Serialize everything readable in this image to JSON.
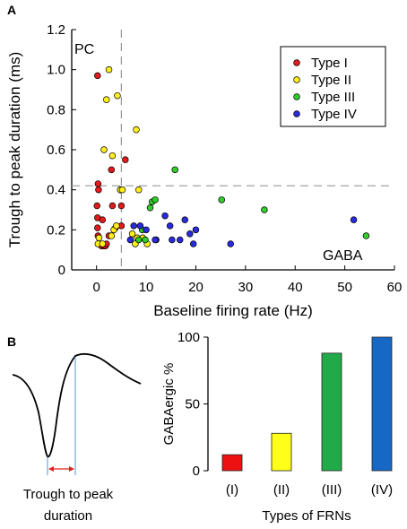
{
  "figure": {
    "panel_a_label": "A",
    "panel_b_label": "B",
    "waveform_caption_line1": "Trough to peak",
    "waveform_caption_line2": "duration"
  },
  "chart_data": [
    {
      "type": "scatter",
      "title": "",
      "xlabel": "Baseline firing rate (Hz)",
      "ylabel": "Trough to peak duration (ms)",
      "xlim": [
        -5,
        60
      ],
      "ylim": [
        0,
        1.2
      ],
      "xticks": [
        0,
        10,
        20,
        30,
        40,
        50,
        60
      ],
      "yticks": [
        0,
        0.2,
        0.4,
        0.6,
        0.8,
        1.0,
        1.2
      ],
      "ytick_labels": [
        "0",
        "0.2",
        "0.4",
        "0.6",
        "0.8",
        "1.0",
        "1.2"
      ],
      "grid": false,
      "legend_position": "top-right",
      "annotations": [
        "PC",
        "GABA"
      ],
      "thresholds": {
        "x": 5,
        "y": 0.42
      },
      "series": [
        {
          "name": "Type I",
          "color": "#e41a1c",
          "x": [
            0.2,
            0.3,
            0.4,
            0.1,
            0.2,
            0.2,
            0.3,
            1.0,
            1.2,
            1.5,
            1.8,
            2.0,
            2.5,
            3.0,
            3.2,
            3.8,
            4.8,
            5.0,
            5.0,
            5.8
          ],
          "y": [
            0.97,
            0.43,
            0.4,
            0.32,
            0.26,
            0.21,
            0.17,
            0.12,
            0.25,
            0.12,
            0.12,
            0.13,
            0.17,
            0.5,
            0.32,
            0.21,
            0.4,
            0.32,
            0.22,
            0.55
          ]
        },
        {
          "name": "Type II",
          "color": "#ffef1a",
          "x": [
            0.3,
            1.5,
            2.0,
            2.5,
            3.2,
            4.2,
            4.8,
            5.2,
            3.5,
            4.0,
            8.0,
            8.5,
            3.0,
            1.2,
            0.5,
            7.8,
            8.2,
            7.2,
            10.2,
            9.3
          ],
          "y": [
            0.13,
            0.6,
            0.85,
            1.0,
            0.57,
            0.87,
            0.4,
            0.4,
            0.2,
            0.22,
            0.7,
            0.4,
            0.17,
            0.13,
            0.16,
            0.13,
            0.16,
            0.18,
            0.13,
            0.16
          ]
        },
        {
          "name": "Type III",
          "color": "#2fce2a",
          "x": [
            9.2,
            10.8,
            11.2,
            11.8,
            9.8,
            8.5,
            15.8,
            25.2,
            33.8,
            54.3
          ],
          "y": [
            0.2,
            0.31,
            0.34,
            0.35,
            0.15,
            0.15,
            0.5,
            0.35,
            0.3,
            0.17
          ],
          "marker_note": "n/a"
        },
        {
          "name": "Type IV",
          "color": "#2a2ae0",
          "x": [
            6.8,
            7.5,
            8.8,
            10.0,
            12.0,
            13.8,
            14.8,
            15.2,
            16.8,
            17.8,
            18.8,
            19.5,
            20.0,
            27.0,
            51.8,
            11.8
          ],
          "y": [
            0.15,
            0.22,
            0.22,
            0.2,
            0.15,
            0.27,
            0.22,
            0.15,
            0.15,
            0.25,
            0.18,
            0.13,
            0.2,
            0.13,
            0.25,
            0.15
          ]
        }
      ]
    },
    {
      "type": "bar",
      "title": "",
      "xlabel": "Types of FRNs",
      "ylabel": "GABAergic %",
      "categories": [
        "(I)",
        "(II)",
        "(III)",
        "(IV)"
      ],
      "values": [
        12,
        28,
        88,
        100
      ],
      "colors": [
        "#ee1111",
        "#ffff1a",
        "#22aa4a",
        "#1768c4"
      ],
      "ylim": [
        0,
        100
      ],
      "yticks": [
        0,
        50,
        100
      ],
      "grid": false
    }
  ]
}
